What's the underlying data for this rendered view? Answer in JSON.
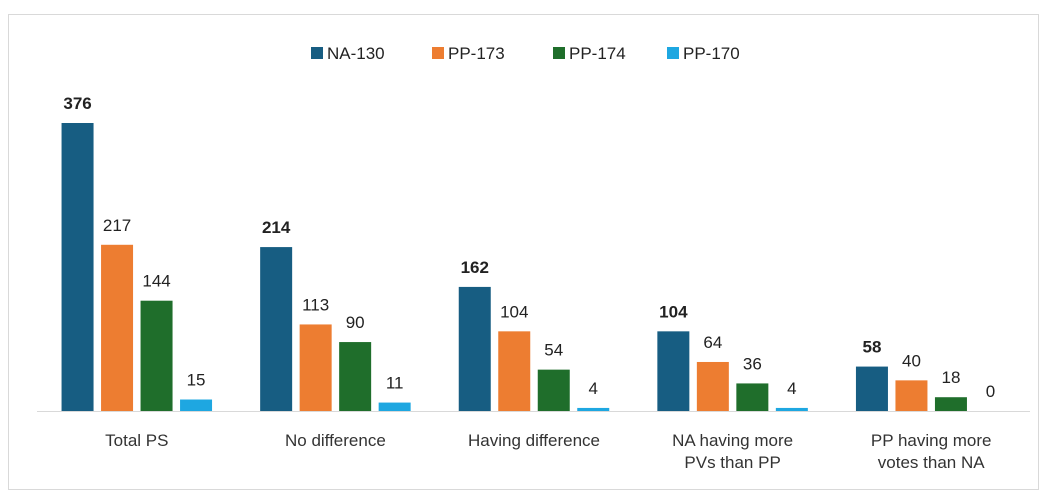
{
  "chart_data": {
    "type": "bar",
    "categories": [
      "Total PS",
      "No difference",
      "Having difference",
      "NA having more PVs than PP",
      "PP having more votes than NA"
    ],
    "series": [
      {
        "name": "NA-130",
        "color": "#175d82",
        "values": [
          376,
          214,
          162,
          104,
          58
        ]
      },
      {
        "name": "PP-173",
        "color": "#ed7d31",
        "values": [
          217,
          113,
          104,
          64,
          40
        ]
      },
      {
        "name": "PP-174",
        "color": "#1f6e2b",
        "values": [
          144,
          90,
          54,
          36,
          18
        ]
      },
      {
        "name": "PP-170",
        "color": "#1ea7e1",
        "values": [
          15,
          11,
          4,
          4,
          0
        ]
      }
    ],
    "legend": "top"
  }
}
